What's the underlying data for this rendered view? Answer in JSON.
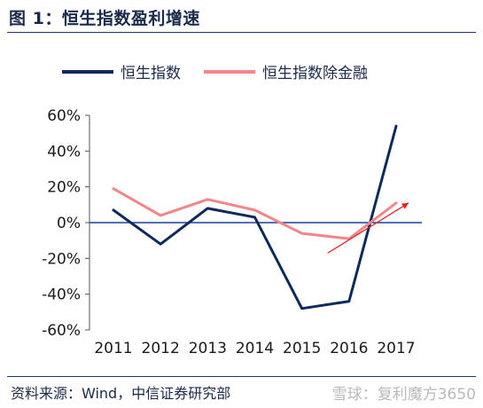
{
  "figure_title": "图 1：恒生指数盈利增速",
  "source_text": "资料来源：Wind，中信证券研究部",
  "watermark": "雪球：复利魔方3650",
  "chart_data": {
    "type": "line",
    "categories": [
      "2011",
      "2012",
      "2013",
      "2014",
      "2015",
      "2016",
      "2017"
    ],
    "series": [
      {
        "name": "恒生指数",
        "color": "#0d2a5b",
        "values": [
          7,
          -12,
          8,
          3,
          -48,
          -44,
          54
        ]
      },
      {
        "name": "恒生指数除金融",
        "color": "#f2868a",
        "values": [
          19,
          4,
          13,
          7,
          -6,
          -9,
          11
        ]
      }
    ],
    "ylim": [
      -60,
      60
    ],
    "yticks": [
      60,
      40,
      20,
      0,
      -20,
      -40,
      -60
    ],
    "ytick_labels": [
      "60%",
      "40%",
      "20%",
      "0%",
      "-20%",
      "-40%",
      "-60%"
    ],
    "zero_line": true,
    "legend_position": "top",
    "annotation": "red trend arrow from 2016 toward 2017",
    "grid": false
  }
}
